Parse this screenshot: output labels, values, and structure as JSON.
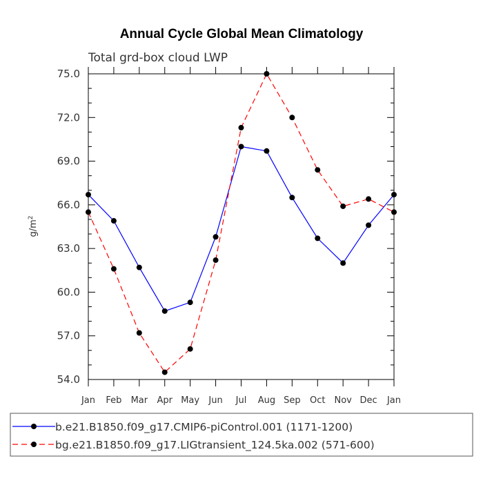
{
  "chart_data": {
    "type": "line",
    "title": "Annual Cycle Global Mean Climatology",
    "subtitle": "Total grd-box cloud LWP",
    "ylabel": "g/m",
    "ylabel_sup": "2",
    "ylim": [
      54.0,
      75.0
    ],
    "yticks": [
      "54.0",
      "57.0",
      "60.0",
      "63.0",
      "66.0",
      "69.0",
      "72.0",
      "75.0"
    ],
    "categories": [
      "Jan",
      "Feb",
      "Mar",
      "Apr",
      "May",
      "Jun",
      "Jul",
      "Aug",
      "Sep",
      "Oct",
      "Nov",
      "Dec",
      "Jan"
    ],
    "series": [
      {
        "name": "b.e21.B1850.f09_g17.CMIP6-piControl.001 (1171-1200)",
        "color": "#0000ff",
        "dash": "solid",
        "values": [
          66.7,
          64.9,
          61.7,
          58.7,
          59.3,
          63.8,
          70.0,
          69.7,
          66.5,
          63.7,
          62.0,
          64.6,
          66.7
        ]
      },
      {
        "name": "bg.e21.B1850.f09_g17.LIGtransient_124.5ka.002 (571-600)",
        "color": "#ff0000",
        "dash": "dashed",
        "values": [
          65.5,
          61.6,
          57.2,
          54.5,
          56.1,
          62.2,
          71.3,
          75.0,
          72.0,
          68.4,
          65.9,
          66.4,
          65.5
        ]
      }
    ],
    "grid": false,
    "legend_position": "bottom"
  }
}
